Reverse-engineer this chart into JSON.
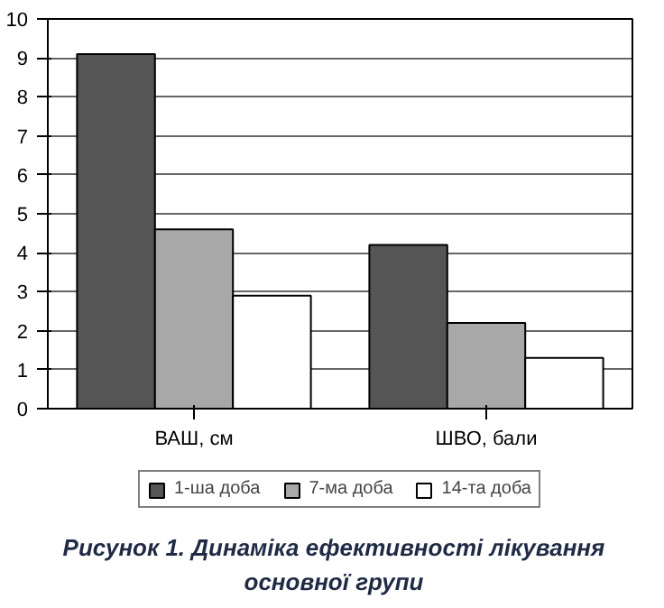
{
  "chart_data": {
    "type": "bar",
    "title": "Рисунок 1. Динаміка ефективності лікування основної групи",
    "categories": [
      "ВАШ, см",
      "ШВО, бали"
    ],
    "series": [
      {
        "name": "1-ша доба",
        "color": "#555555",
        "values": [
          9.1,
          4.2
        ]
      },
      {
        "name": "7-ма доба",
        "color": "#a8a8a8",
        "values": [
          4.6,
          2.2
        ]
      },
      {
        "name": "14-та доба",
        "color": "#ffffff",
        "values": [
          2.9,
          1.3
        ]
      }
    ],
    "ylim": [
      0,
      10
    ],
    "yticks": [
      0,
      1,
      2,
      3,
      4,
      5,
      6,
      7,
      8,
      9,
      10
    ],
    "grid": "y",
    "legend": "bottom"
  }
}
